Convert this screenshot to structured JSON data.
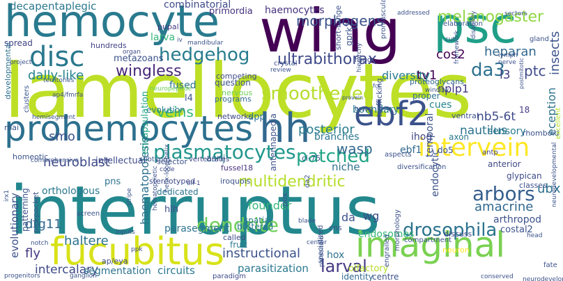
{
  "words": {
    "lamellocytes": "lamellocytes",
    "interruptus": "interruptus",
    "hemocyte": "hemocyte",
    "wing": "wing",
    "psc": "psc",
    "prohemocytes": "prohemocytes",
    "hh": "hh",
    "ebf2": "ebf2",
    "fucubitus": "fucubitus",
    "imaginal": "imaginal",
    "disc": "disc",
    "intervein": "intervein",
    "plasmatocytes": "plasmatocytes",
    "smoothened": "smoothened",
    "patched": "patched",
    "hedgehog": "hedgehog",
    "wingless": "wingless",
    "ultrabithorax": "ultrabithorax",
    "morphogens": "morphogens",
    "melanogaster": "melanogaster",
    "drosophila": "drosophila",
    "dendrite": "dendrite",
    "multidendritic": "multidendritic",
    "arbors": "arbors",
    "da3": "da3",
    "heparan": "heparan",
    "hemocytes": "haemocytes",
    "combinatorial": "combinatorial",
    "primordia": "primordia",
    "decapentaplegic": "decapentaplegic",
    "cos2": "cos2",
    "tv1": "tv1",
    "nplp1": "nplp1",
    "ptc": "ptc",
    "l3": "l3",
    "diversity": "diversity",
    "dally": "dally-like",
    "metazoans": "metazoans",
    "larva": "larva",
    "pupal": "pupal",
    "spread": "spread",
    "hundreds": "hundreds",
    "fused": "fused",
    "veins": "veins",
    "evolution": "evolution",
    "l4": "l4",
    "nervous": "nervous",
    "programs": "programs",
    "networks": "networks",
    "question": "question",
    "competing": "competing",
    "dpp": "dpp",
    "posterior": "posterior",
    "boundary": "boundary",
    "cues": "cues",
    "nautilus": "nautilus",
    "nb5": "nb5-6t",
    "sensory": "sensory",
    "ihog": "ihog",
    "ebf1": "ebf1",
    "wasp": "wasp",
    "niche": "niche",
    "neuroblast": "neuroblast",
    "smo": "smo",
    "orthologous": "orthologous",
    "pns": "pns",
    "asrij": "asrij",
    "fussel18": "fussel18",
    "hlh": "hlh",
    "parasegment": "parasegment",
    "founder": "founder",
    "spatial": "spatial",
    "blistered": "blistered",
    "instructional": "instructional",
    "fruit": "fruit",
    "called": "called",
    "haltere": "haltere",
    "drg11": "drg11",
    "fly": "fly",
    "intercalary": "intercalary",
    "larval": "larval",
    "da": "da",
    "wg": "wg",
    "endosomes": "endosomes",
    "amacrine": "amacrine",
    "arthropod": "arthropod",
    "ubx": "ubx",
    "costal2": "costal2",
    "segmentation": "segmentation",
    "circuits": "circuits",
    "parasitization": "parasitization",
    "identity": "identity",
    "centre": "centre",
    "olfactory": "olfactory",
    "hox": "hox",
    "discuss": "discuss",
    "compartment": "compartment",
    "neuron": "neuron",
    "glypican": "glypican",
    "classes": "classes",
    "anterior": "anterior",
    "eighteen": "18",
    "rhomboid": "rhomboid",
    "do5": "do5",
    "axon": "axon",
    "antp": "antp",
    "aspects": "aspects",
    "diversification": "diversification",
    "ci75": "ci-75",
    "branches": "branches",
    "intellectual": "intellectual",
    "selector": "selector",
    "vertebrates": "vertebrates",
    "subtypes": "subtypes",
    "stereotyped": "stereotyped",
    "iroquois": "iroquois",
    "paradigm": "paradigm",
    "apeya": "ap/eya",
    "ppk": "ppk",
    "dedicated": "dedicated",
    "proteoglycans": "proteoglycans",
    "rnai": "rnai",
    "homeotic": "homeotic",
    "comprehensive": "comprehensive",
    "code": "code",
    "proper": "proper",
    "organ": "organ",
    "iv": "iv",
    "hspg": "hspg",
    "olf1": "olf-1",
    "lymph": "lymph",
    "nerve": "nerve",
    "window": "window",
    "review": "review",
    "crystal": "crystal",
    "provein": "provein",
    "fcs": "fcs",
    "broad": "broad",
    "ventral": "ventral",
    "gland": "gland",
    "head": "head",
    "fate": "fate",
    "blade": "blade",
    "cns": "cns",
    "dissect": "center",
    "screen": "screen",
    "ap4": "ap4/fmrfa",
    "territories": "territories",
    "hemisegment": "hemisegment",
    "project": "project",
    "mandibular": "mandibular",
    "neurogenesis": "neuropeptide",
    "ganglion": "ganglion",
    "progenitors": "progenitors",
    "conserved": "conserved",
    "elaboration": "elaboration",
    "addressed": "addressed",
    "cut": "cut",
    "sectors": "sectors",
    "inputs": "inputs",
    "notch": "notch",
    "haematopoiesis": "haematopoiesis",
    "encapsulation": "encapsulation",
    "evolutionary": "evolutionary",
    "patterning": "patterning",
    "pickpocket": "pickpocket",
    "developmental": "developmental",
    "insects": "insects",
    "eception": "eception",
    "temporal": "temporal",
    "endocytic": "endocytic",
    "gprk2": "gprk2",
    "shortrange": "short-range",
    "promuscular": "promuscular",
    "trafficking": "trafficking",
    "antennapedia": "antennapedia",
    "helix": "helix-loop-helix",
    "stripe": "stripe",
    "pox": "pox",
    "specialized": "specialized",
    "parasitoid": "parasitoid",
    "excellent": "excellent",
    "neurodev": "neurodevelopmental",
    "engrailed": "engrailed",
    "morphology": "morphology",
    "hematopoietic": "hematopoietic",
    "da2": "da2",
    "hierarchy": "hierarchy",
    "framework": "framework",
    "disability": "disability",
    "postmitotic": "postmitotic",
    "clusters": "clusters",
    "irx1": "irx1",
    "hemidev": "neurodevelopmental"
  },
  "colors": {
    "background": "#ffffff",
    "palette": [
      "#440154",
      "#3b528b",
      "#21918c",
      "#5ec962",
      "#fde725"
    ]
  }
}
